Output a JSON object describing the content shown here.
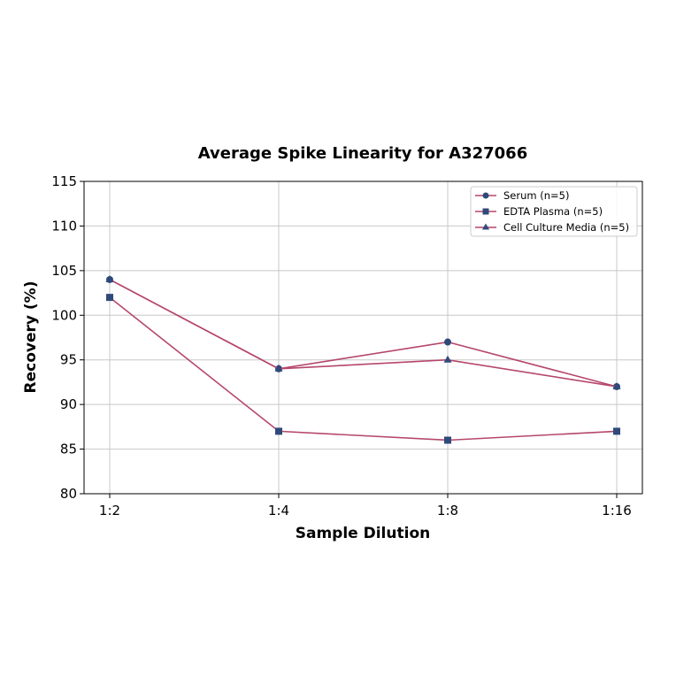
{
  "chart_data": {
    "type": "line",
    "title": "Average Spike Linearity for A327066",
    "xlabel": "Sample Dilution",
    "ylabel": "Recovery (%)",
    "categories": [
      "1:2",
      "1:4",
      "1:8",
      "1:16"
    ],
    "ylim": [
      80,
      115
    ],
    "yticks": [
      80,
      85,
      90,
      95,
      100,
      105,
      110,
      115
    ],
    "grid": true,
    "legend_position": "upper right",
    "series": [
      {
        "name": "Serum (n=5)",
        "marker": "circle",
        "values": [
          104,
          94,
          97,
          92
        ]
      },
      {
        "name": "EDTA Plasma (n=5)",
        "marker": "square",
        "values": [
          102,
          87,
          86,
          87
        ]
      },
      {
        "name": "Cell Culture Media (n=5)",
        "marker": "triangle",
        "values": [
          104,
          94,
          95,
          92
        ]
      }
    ],
    "colors": {
      "line": "#b5476b",
      "marker": "#2f4a7a",
      "grid": "#c8c8c8",
      "axis": "#000000"
    }
  }
}
